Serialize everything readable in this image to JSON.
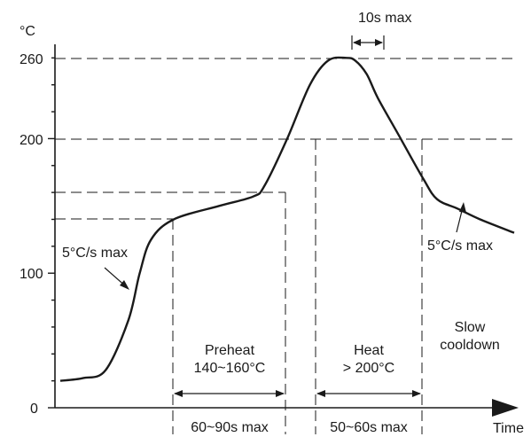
{
  "chart_data": {
    "type": "line",
    "title": "",
    "xlabel": "Time",
    "ylabel": "°C",
    "y_ticks": [
      "0",
      "100",
      "200",
      "260"
    ],
    "reference_temps": [
      140,
      160,
      200,
      260
    ],
    "series": [
      {
        "x": [
          0,
          10,
          20,
          30,
          35,
          40,
          50,
          70,
          85,
          90,
          100,
          110,
          118,
          126,
          130,
          135,
          140,
          150,
          160,
          166,
          175,
          185,
          200
        ],
        "y": [
          20,
          22,
          28,
          65,
          100,
          125,
          140,
          150,
          157,
          165,
          200,
          240,
          258,
          260,
          258,
          248,
          230,
          200,
          170,
          155,
          148,
          140,
          130
        ]
      }
    ],
    "annotations": {
      "peak_hold": "10s max",
      "ramp_up": "5°C/s max",
      "ramp_down": "5°C/s max",
      "preheat_line1": "Preheat",
      "preheat_line2": "140~160°C",
      "heat_line1": "Heat",
      "heat_line2": "> 200°C",
      "cool_line1": "Slow",
      "cool_line2": "cooldown",
      "preheat_time": "60~90s max",
      "heat_time": "50~60s max"
    }
  }
}
